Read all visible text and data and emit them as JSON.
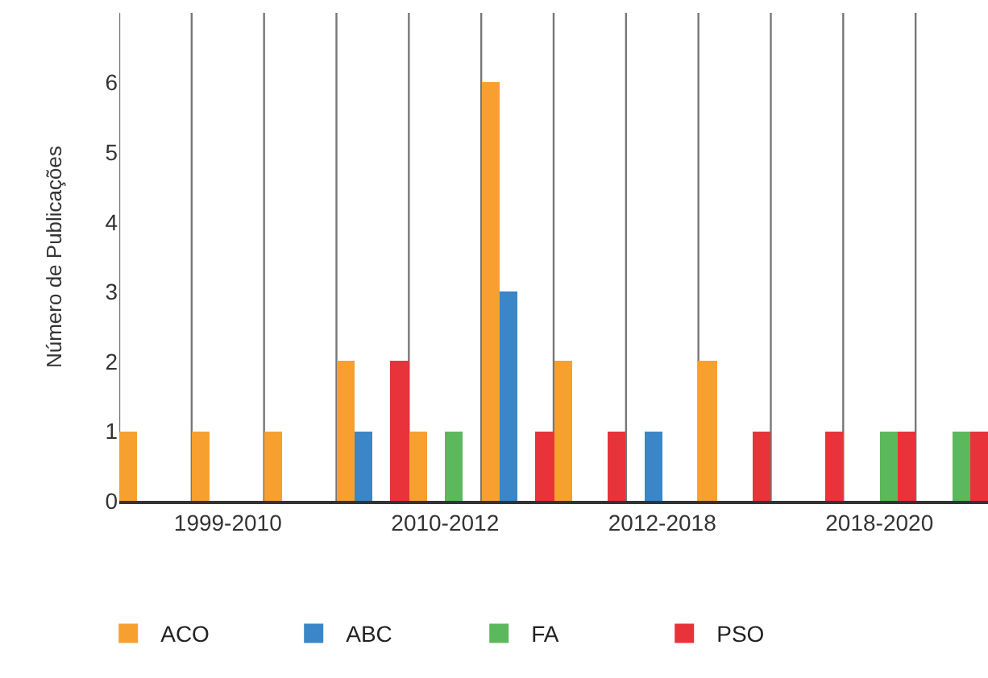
{
  "chart_data": {
    "type": "bar",
    "ylabel": "Número de Publicações",
    "categories": [
      null,
      "1999-2010",
      null,
      null,
      "2010-2012",
      null,
      null,
      "2012-2018",
      null,
      null,
      "2018-2020",
      null
    ],
    "series": [
      {
        "name": "ACO",
        "color": "#f7a030",
        "values": [
          1,
          1,
          1,
          2,
          1,
          6,
          2,
          0,
          2,
          0,
          0,
          0
        ]
      },
      {
        "name": "ABC",
        "color": "#3a86c8",
        "values": [
          0,
          0,
          0,
          1,
          0,
          3,
          0,
          1,
          0,
          0,
          0,
          0
        ]
      },
      {
        "name": "FA",
        "color": "#5cb85c",
        "values": [
          0,
          0,
          0,
          0,
          1,
          0,
          0,
          0,
          0,
          0,
          1,
          1
        ]
      },
      {
        "name": "PSO",
        "color": "#e8333a",
        "values": [
          0,
          0,
          0,
          2,
          0,
          1,
          1,
          0,
          1,
          1,
          1,
          1
        ]
      }
    ],
    "ylim": [
      0,
      7
    ],
    "yticks": [
      0,
      1,
      2,
      3,
      4,
      5,
      6
    ],
    "grid": "x",
    "legend": "bottom"
  }
}
